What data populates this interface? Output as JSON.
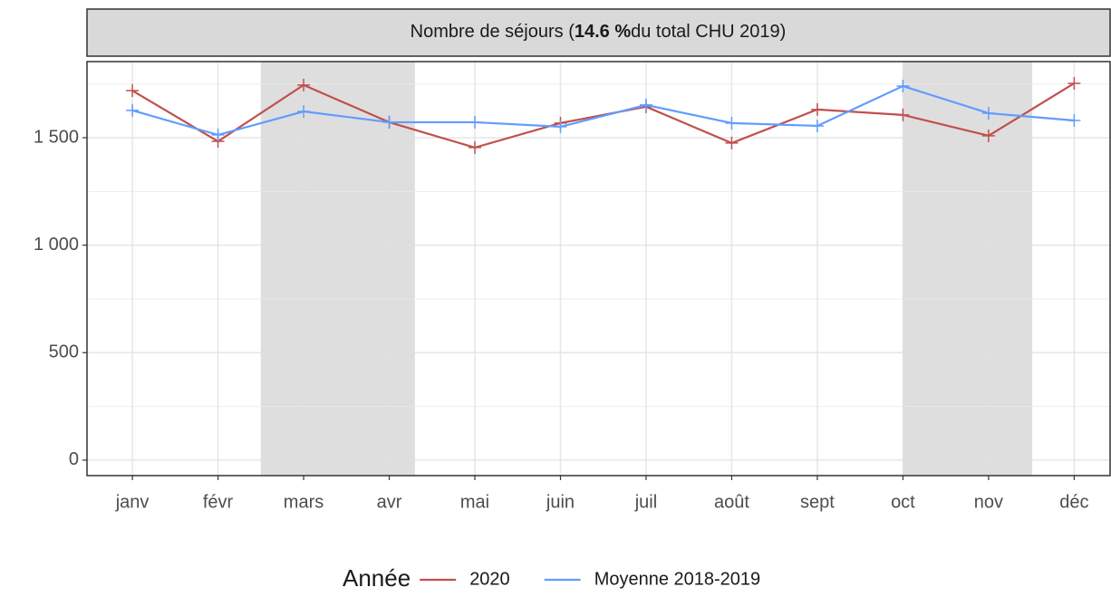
{
  "chart_data": {
    "type": "line",
    "title": {
      "prefix": "Nombre de séjours (",
      "highlight": "14.6 %",
      "suffix": "du total CHU 2019)"
    },
    "categories": [
      "janv",
      "févr",
      "mars",
      "avr",
      "mai",
      "juin",
      "juil",
      "août",
      "sept",
      "oct",
      "nov",
      "déc"
    ],
    "series": [
      {
        "name": "2020",
        "color": "#c0504d",
        "values": [
          1719,
          1483,
          1745,
          1572,
          1454,
          1568,
          1644,
          1475,
          1631,
          1606,
          1509,
          1753
        ]
      },
      {
        "name": "Moyenne 2018-2019",
        "color": "#619cff",
        "values": [
          1627,
          1513,
          1622,
          1572,
          1572,
          1551,
          1652,
          1568,
          1555,
          1740,
          1614,
          1580
        ]
      }
    ],
    "legend_title": "Année",
    "legend_position": "bottom",
    "xlim": [
      -0.53,
      11.43
    ],
    "highlight_ranges": [
      [
        1.5,
        3.3
      ],
      [
        9.0,
        10.51
      ]
    ],
    "ylim": [
      -72,
      1854
    ],
    "yticks": [
      0,
      500,
      {
        "value": 1000,
        "label": "1 000"
      },
      {
        "value": 1500,
        "label": "1 500"
      }
    ],
    "yminor": [
      250,
      750,
      1250,
      1750
    ],
    "grid": true
  }
}
